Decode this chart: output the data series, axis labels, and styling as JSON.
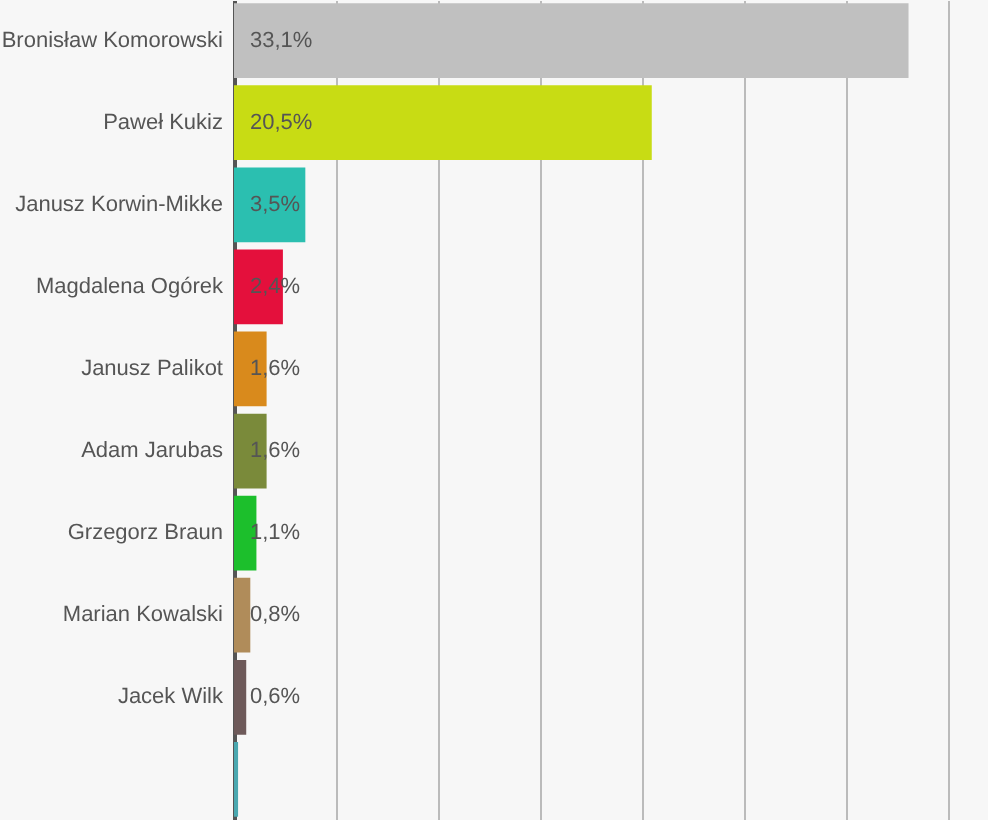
{
  "chart_data": {
    "type": "bar",
    "orientation": "horizontal",
    "categories": [
      "Bronisław Komorowski",
      "Paweł Kukiz",
      "Janusz Korwin-Mikke",
      "Magdalena Ogórek",
      "Janusz Palikot",
      "Adam Jarubas",
      "Grzegorz Braun",
      "Marian Kowalski",
      "Jacek Wilk",
      null
    ],
    "values": [
      33.1,
      20.5,
      3.5,
      2.4,
      1.6,
      1.6,
      1.1,
      0.8,
      0.6,
      0.2
    ],
    "value_labels": [
      "33,1%",
      "20,5%",
      "3,5%",
      "2,4%",
      "1,6%",
      "1,6%",
      "1,1%",
      "0,8%",
      "0,6%",
      null
    ],
    "colors": [
      "#c0c0c0",
      "#c8dc14",
      "#2bbfb0",
      "#e4103c",
      "#d98a1c",
      "#7a8a3a",
      "#1cbf2c",
      "#b08c5a",
      "#6e5a5a",
      "#4aa8b0"
    ],
    "xlim": [
      0,
      37
    ],
    "xticks": [
      0,
      5,
      10,
      15,
      20,
      25,
      30,
      35
    ],
    "grid": "x",
    "tick_labels": "y"
  }
}
